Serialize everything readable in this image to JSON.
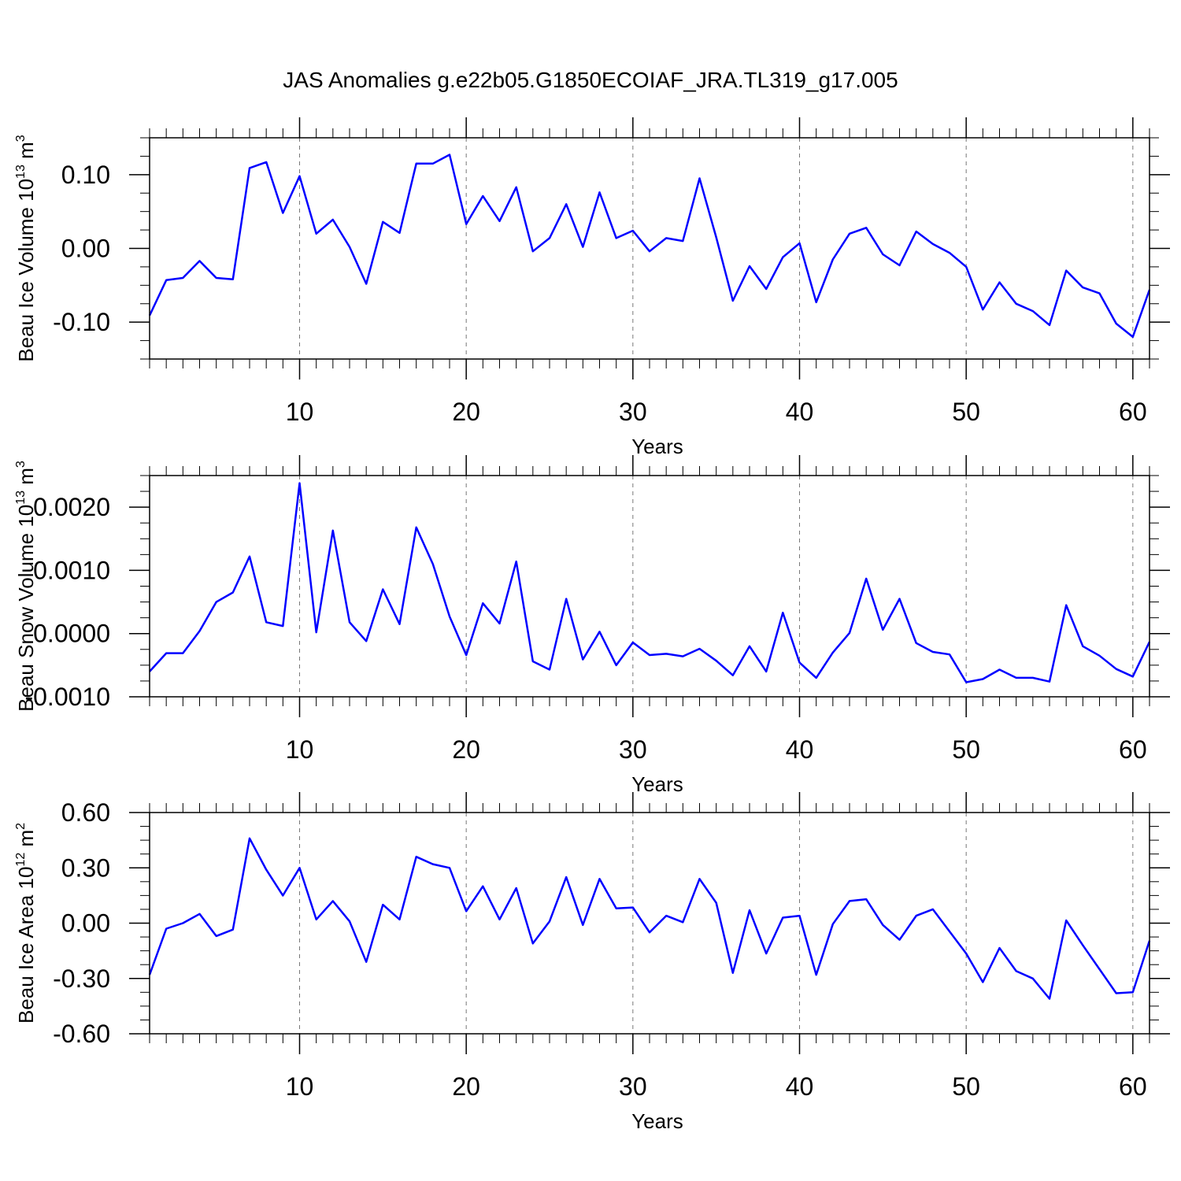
{
  "chart_data": {
    "title": "JAS Anomalies g.e22b05.G1850ECOIAF_JRA.TL319_g17.005",
    "panels": [
      {
        "type": "line",
        "ylabel": {
          "prefix": "Beau Ice Volume 10",
          "exp": "13",
          "unit": " m",
          "unit_exp": "3"
        },
        "xlabel": "Years",
        "xlim": [
          1,
          61
        ],
        "ylim": [
          -0.15,
          0.15
        ],
        "yticks": [
          -0.1,
          0.0,
          0.1
        ],
        "ytick_labels": [
          "-0.10",
          "0.00",
          "0.10"
        ],
        "xticks": [
          10,
          20,
          30,
          40,
          50,
          60
        ],
        "xtick_labels": [
          "10",
          "20",
          "30",
          "40",
          "50",
          "60"
        ],
        "color": "#0000ff",
        "x": [
          1,
          2,
          3,
          4,
          5,
          6,
          7,
          8,
          9,
          10,
          11,
          12,
          13,
          14,
          15,
          16,
          17,
          18,
          19,
          20,
          21,
          22,
          23,
          24,
          25,
          26,
          27,
          28,
          29,
          30,
          31,
          32,
          33,
          34,
          35,
          36,
          37,
          38,
          39,
          40,
          41,
          42,
          43,
          44,
          45,
          46,
          47,
          48,
          49,
          50,
          51,
          52,
          53,
          54,
          55,
          56,
          57,
          58,
          59,
          60,
          61
        ],
        "values": [
          -0.091,
          -0.043,
          -0.04,
          -0.017,
          -0.04,
          -0.042,
          0.109,
          0.117,
          0.048,
          0.098,
          0.02,
          0.039,
          0.002,
          -0.048,
          0.036,
          0.021,
          0.115,
          0.115,
          0.127,
          0.033,
          0.071,
          0.037,
          0.083,
          -0.004,
          0.014,
          0.06,
          0.002,
          0.076,
          0.014,
          0.024,
          -0.004,
          0.014,
          0.01,
          0.095,
          0.015,
          -0.071,
          -0.024,
          -0.055,
          -0.012,
          0.007,
          -0.073,
          -0.015,
          0.02,
          0.028,
          -0.008,
          -0.023,
          0.023,
          0.006,
          -0.006,
          -0.025,
          -0.083,
          -0.046,
          -0.075,
          -0.085,
          -0.104,
          -0.03,
          -0.053,
          -0.061,
          -0.102,
          -0.12,
          -0.056
        ]
      },
      {
        "type": "line",
        "ylabel": {
          "prefix": "Beau Snow Volume 10",
          "exp": "13",
          "unit": " m",
          "unit_exp": "3"
        },
        "xlabel": "Years",
        "xlim": [
          1,
          61
        ],
        "ylim": [
          -0.001,
          0.0025
        ],
        "yticks": [
          -0.001,
          0.0,
          0.001,
          0.002
        ],
        "ytick_labels": [
          "-0.0010",
          "0.0000",
          "0.0010",
          "0.0020"
        ],
        "xticks": [
          10,
          20,
          30,
          40,
          50,
          60
        ],
        "xtick_labels": [
          "10",
          "20",
          "30",
          "40",
          "50",
          "60"
        ],
        "color": "#0000ff",
        "x": [
          1,
          2,
          3,
          4,
          5,
          6,
          7,
          8,
          9,
          10,
          11,
          12,
          13,
          14,
          15,
          16,
          17,
          18,
          19,
          20,
          21,
          22,
          23,
          24,
          25,
          26,
          27,
          28,
          29,
          30,
          31,
          32,
          33,
          34,
          35,
          36,
          37,
          38,
          39,
          40,
          41,
          42,
          43,
          44,
          45,
          46,
          47,
          48,
          49,
          50,
          51,
          52,
          53,
          54,
          55,
          56,
          57,
          58,
          59,
          60,
          61
        ],
        "values": [
          -0.0006,
          -0.00031,
          -0.00031,
          4e-05,
          0.0005,
          0.00065,
          0.00122,
          0.00018,
          0.00012,
          0.00238,
          2e-05,
          0.00163,
          0.00018,
          -0.00012,
          0.0007,
          0.00015,
          0.00168,
          0.0011,
          0.00027,
          -0.00034,
          0.00048,
          0.00016,
          0.00114,
          -0.00044,
          -0.00057,
          0.00055,
          -0.00041,
          3e-05,
          -0.0005,
          -0.00014,
          -0.00034,
          -0.00032,
          -0.00036,
          -0.00024,
          -0.00043,
          -0.00066,
          -0.0002,
          -0.0006,
          0.00033,
          -0.00046,
          -0.0007,
          -0.0003,
          1e-05,
          0.00087,
          6e-05,
          0.00055,
          -0.00015,
          -0.00029,
          -0.00033,
          -0.00077,
          -0.00072,
          -0.00057,
          -0.0007,
          -0.0007,
          -0.00076,
          0.00045,
          -0.0002,
          -0.00035,
          -0.00056,
          -0.00068,
          -0.00013
        ]
      },
      {
        "type": "line",
        "ylabel": {
          "prefix": "Beau Ice Area 10",
          "exp": "12",
          "unit": " m",
          "unit_exp": "2"
        },
        "xlabel": "Years",
        "xlim": [
          1,
          61
        ],
        "ylim": [
          -0.6,
          0.6
        ],
        "yticks": [
          -0.6,
          -0.3,
          0.0,
          0.3,
          0.6
        ],
        "ytick_labels": [
          "-0.60",
          "-0.30",
          "0.00",
          "0.30",
          "0.60"
        ],
        "xticks": [
          10,
          20,
          30,
          40,
          50,
          60
        ],
        "xtick_labels": [
          "10",
          "20",
          "30",
          "40",
          "50",
          "60"
        ],
        "color": "#0000ff",
        "x": [
          1,
          2,
          3,
          4,
          5,
          6,
          7,
          8,
          9,
          10,
          11,
          12,
          13,
          14,
          15,
          16,
          17,
          18,
          19,
          20,
          21,
          22,
          23,
          24,
          25,
          26,
          27,
          28,
          29,
          30,
          31,
          32,
          33,
          34,
          35,
          36,
          37,
          38,
          39,
          40,
          41,
          42,
          43,
          44,
          45,
          46,
          47,
          48,
          49,
          50,
          51,
          52,
          53,
          54,
          55,
          56,
          57,
          58,
          59,
          60,
          61
        ],
        "values": [
          -0.28,
          -0.03,
          0.0,
          0.05,
          -0.07,
          -0.035,
          0.46,
          0.29,
          0.15,
          0.3,
          0.02,
          0.12,
          0.01,
          -0.21,
          0.1,
          0.02,
          0.36,
          0.32,
          0.3,
          0.065,
          0.2,
          0.02,
          0.19,
          -0.11,
          0.01,
          0.25,
          -0.01,
          0.24,
          0.08,
          0.085,
          -0.05,
          0.04,
          0.005,
          0.24,
          0.11,
          -0.27,
          0.07,
          -0.165,
          0.03,
          0.04,
          -0.28,
          -0.005,
          0.12,
          0.13,
          -0.01,
          -0.09,
          0.04,
          0.075,
          -0.045,
          -0.165,
          -0.32,
          -0.135,
          -0.26,
          -0.3,
          -0.41,
          0.015,
          -0.12,
          -0.25,
          -0.38,
          -0.375,
          -0.095
        ]
      }
    ]
  }
}
